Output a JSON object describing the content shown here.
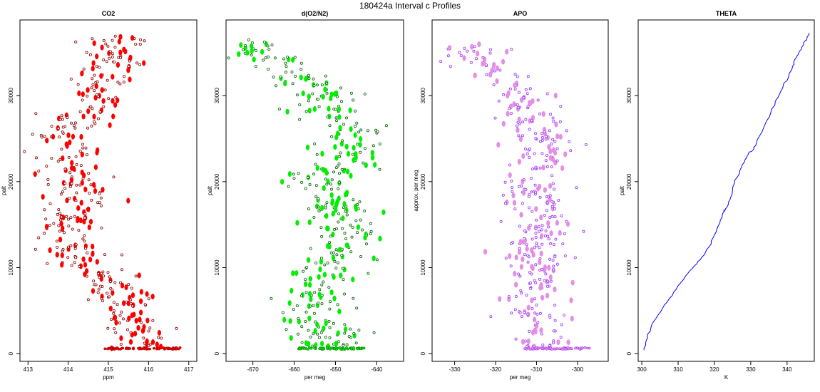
{
  "figure_title": "180424a   Interval c Profiles",
  "chart_data": [
    {
      "type": "scatter",
      "title": "CO2",
      "xlabel": "ppm",
      "ylabel": "palt",
      "xlim": [
        412.8,
        417.2
      ],
      "ylim": [
        -900,
        38800
      ],
      "xticks": [
        413,
        414,
        415,
        416,
        417
      ],
      "yticks": [
        0,
        10000,
        20000,
        30000
      ],
      "color": "#ff0000",
      "edge_color": "#8b0000",
      "profile": [
        {
          "y": 600,
          "x": 415.9
        },
        {
          "y": 2000,
          "x": 415.9
        },
        {
          "y": 4000,
          "x": 415.6
        },
        {
          "y": 6000,
          "x": 415.5
        },
        {
          "y": 8000,
          "x": 415.1
        },
        {
          "y": 10000,
          "x": 414.4
        },
        {
          "y": 11000,
          "x": 414.4
        },
        {
          "y": 12500,
          "x": 413.9
        },
        {
          "y": 13500,
          "x": 413.6
        },
        {
          "y": 15000,
          "x": 413.9
        },
        {
          "y": 17000,
          "x": 414.1
        },
        {
          "y": 19000,
          "x": 414.3
        },
        {
          "y": 21000,
          "x": 414.2
        },
        {
          "y": 23000,
          "x": 414.1
        },
        {
          "y": 25500,
          "x": 413.7
        },
        {
          "y": 27500,
          "x": 414.4
        },
        {
          "y": 30500,
          "x": 414.7
        },
        {
          "y": 33000,
          "x": 415.0
        },
        {
          "y": 35000,
          "x": 415.1
        },
        {
          "y": 37000,
          "x": 415.4
        }
      ],
      "spread": 0.42,
      "n_points": 420,
      "surface": {
        "y": 600,
        "x_range": [
          414.9,
          416.8
        ]
      },
      "seed": 11
    },
    {
      "type": "scatter",
      "title": "d(O2/N2)",
      "xlabel": "per meg",
      "ylabel": "palt",
      "xlim": [
        -676.5,
        -633.5
      ],
      "ylim": [
        -900,
        38800
      ],
      "xticks": [
        -670,
        -660,
        -650,
        -640
      ],
      "yticks": [
        0,
        10000,
        20000,
        30000
      ],
      "color": "#00ee00",
      "edge_color": "#006400",
      "profile": [
        {
          "y": 600,
          "x": -650
        },
        {
          "y": 2000,
          "x": -651
        },
        {
          "y": 4000,
          "x": -656
        },
        {
          "y": 6000,
          "x": -654
        },
        {
          "y": 8000,
          "x": -656
        },
        {
          "y": 10000,
          "x": -651
        },
        {
          "y": 12000,
          "x": -649
        },
        {
          "y": 14000,
          "x": -646
        },
        {
          "y": 16000,
          "x": -648
        },
        {
          "y": 18000,
          "x": -650
        },
        {
          "y": 20000,
          "x": -655
        },
        {
          "y": 22000,
          "x": -650
        },
        {
          "y": 24000,
          "x": -645
        },
        {
          "y": 26000,
          "x": -646
        },
        {
          "y": 28000,
          "x": -651
        },
        {
          "y": 30000,
          "x": -654
        },
        {
          "y": 32000,
          "x": -658
        },
        {
          "y": 34000,
          "x": -666
        },
        {
          "y": 35500,
          "x": -670
        },
        {
          "y": 36500,
          "x": -672
        }
      ],
      "spread": 4.2,
      "n_points": 420,
      "surface": {
        "y": 600,
        "x_range": [
          -659,
          -643
        ]
      },
      "seed": 23
    },
    {
      "type": "scatter",
      "title": "APO",
      "xlabel": "per meg",
      "ylabel": "approx. per meg",
      "xlim": [
        -335.5,
        -292.5
      ],
      "ylim": [
        -900,
        38800
      ],
      "xticks": [
        -330,
        -320,
        -310,
        -300
      ],
      "yticks": [
        0,
        10000,
        20000,
        30000
      ],
      "color": "#e58ee5",
      "edge_color": "#9b30ff",
      "profile": [
        {
          "y": 600,
          "x": -307
        },
        {
          "y": 3000,
          "x": -309
        },
        {
          "y": 6000,
          "x": -310
        },
        {
          "y": 9000,
          "x": -311
        },
        {
          "y": 12000,
          "x": -311
        },
        {
          "y": 15000,
          "x": -309
        },
        {
          "y": 18000,
          "x": -310
        },
        {
          "y": 20000,
          "x": -312
        },
        {
          "y": 22000,
          "x": -309
        },
        {
          "y": 24000,
          "x": -308
        },
        {
          "y": 26000,
          "x": -309
        },
        {
          "y": 28000,
          "x": -311
        },
        {
          "y": 30000,
          "x": -313
        },
        {
          "y": 32000,
          "x": -316
        },
        {
          "y": 34000,
          "x": -325
        },
        {
          "y": 36000,
          "x": -328
        }
      ],
      "spread": 4.0,
      "n_points": 400,
      "surface": {
        "y": 600,
        "x_range": [
          -313,
          -297
        ]
      },
      "seed": 37
    },
    {
      "type": "line",
      "title": "THETA",
      "xlabel": "K",
      "ylabel": "palt",
      "xlim": [
        299,
        347.5
      ],
      "ylim": [
        -900,
        38800
      ],
      "xticks": [
        300,
        310,
        320,
        330,
        340
      ],
      "yticks": [
        0,
        10000,
        20000,
        30000
      ],
      "color": "#0000ff",
      "x": [
        300.6,
        301.2,
        302.5,
        304.5,
        307,
        309.5,
        312,
        314.5,
        316.5,
        318.5,
        320,
        321.5,
        322.5,
        323,
        323.5,
        324.5,
        325.5,
        327,
        328.5,
        329.5,
        330.5,
        331.5,
        333.5,
        335.5,
        337.5,
        339,
        340.5,
        341.5,
        342.5,
        343.5,
        344.5,
        345.5,
        346.0
      ],
      "y": [
        400,
        1500,
        3000,
        4500,
        6000,
        7500,
        9000,
        10200,
        11200,
        12400,
        13800,
        15200,
        16500,
        16800,
        17100,
        18200,
        19800,
        21300,
        22600,
        23400,
        23600,
        24400,
        26200,
        28000,
        29800,
        31200,
        32300,
        33400,
        34400,
        35200,
        35900,
        36700,
        37300
      ]
    }
  ]
}
